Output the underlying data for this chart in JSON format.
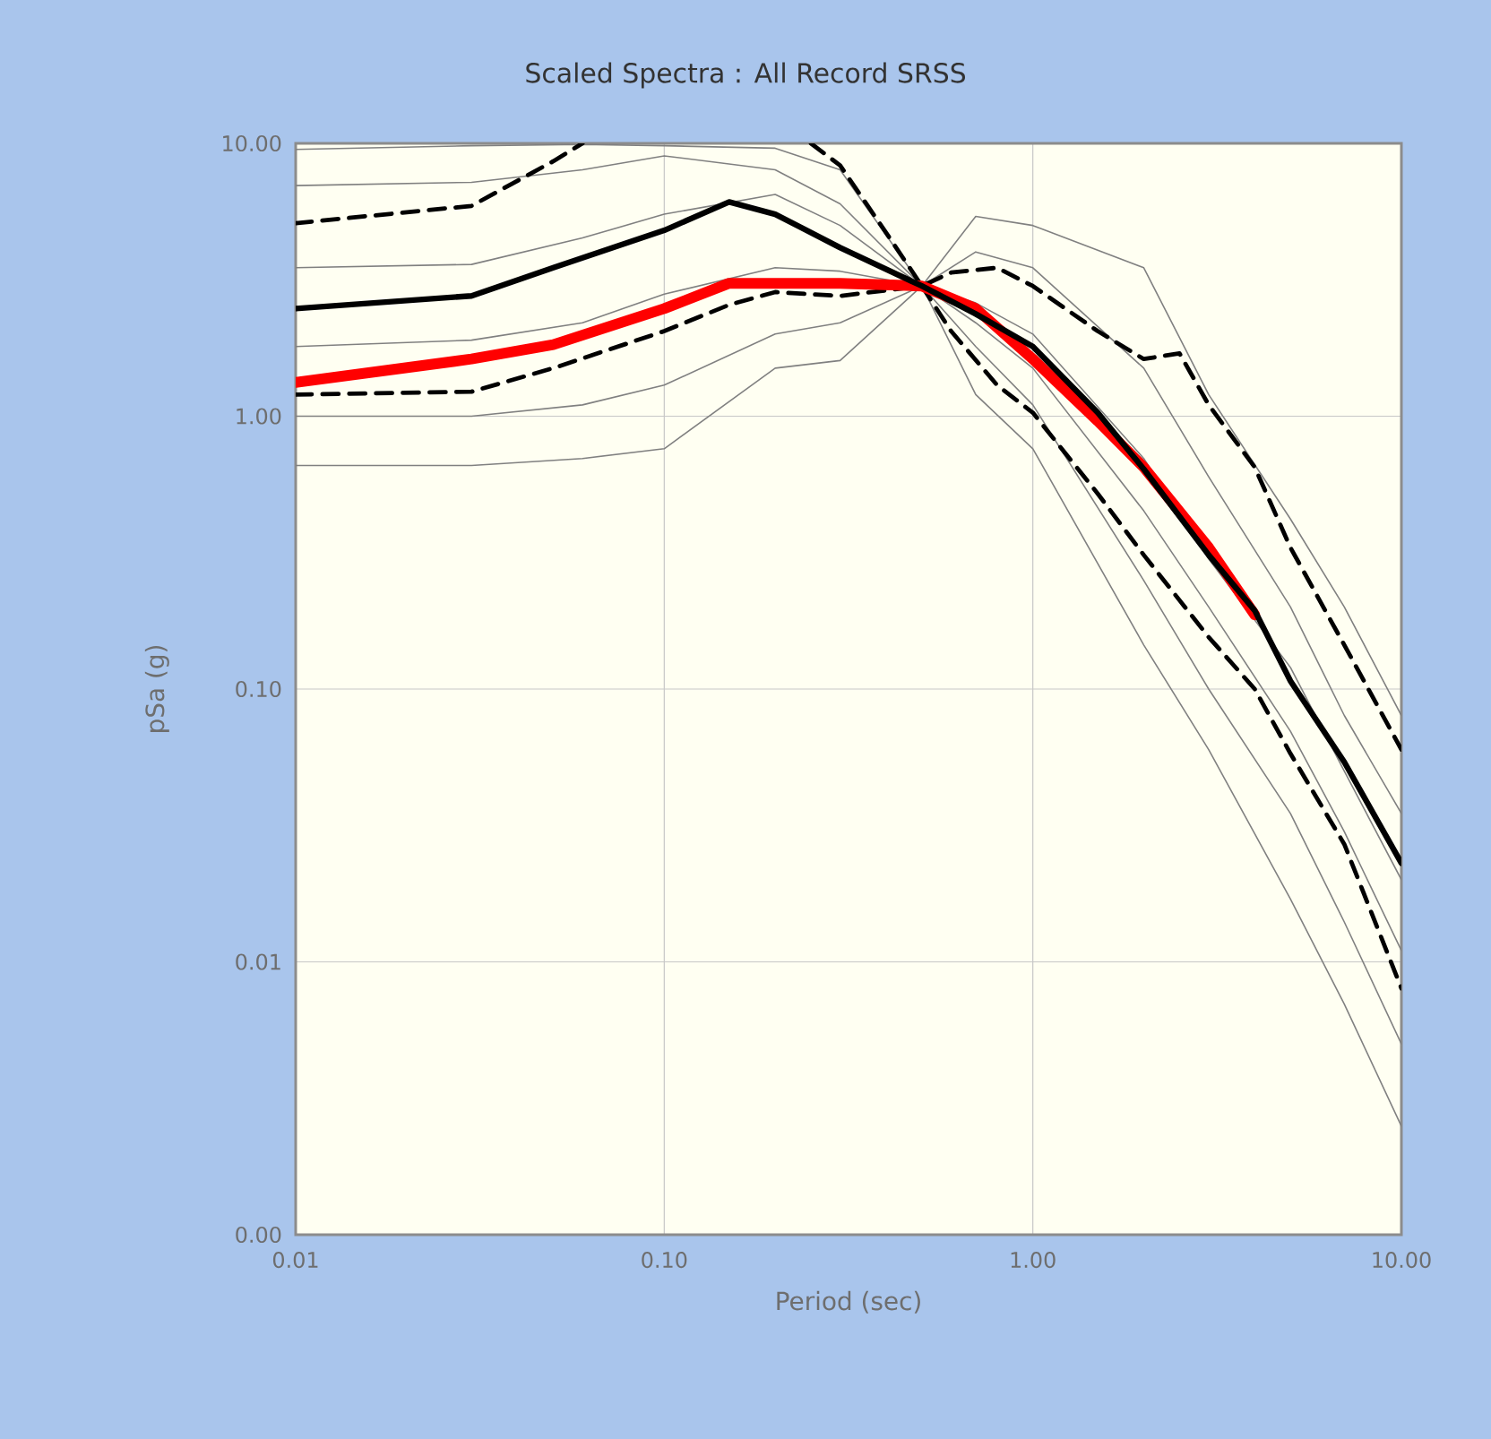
{
  "chart_data": {
    "type": "line",
    "title": "Scaled Spectra : All Record SRSS",
    "xlabel": "Period (sec)",
    "ylabel": "pSa (g)",
    "log": "xy",
    "grid": true,
    "marker": "none",
    "xlim": [
      0.01,
      10
    ],
    "ylim": [
      0.001,
      10
    ],
    "xticks": [
      {
        "value": 0.01,
        "label": "0.01"
      },
      {
        "value": 0.1,
        "label": "0.10"
      },
      {
        "value": 1,
        "label": "1.00"
      },
      {
        "value": 10,
        "label": "10.00"
      }
    ],
    "yticks": [
      {
        "value": 0.001,
        "label": "0.00"
      },
      {
        "value": 0.01,
        "label": "0.01"
      },
      {
        "value": 0.1,
        "label": "0.10"
      },
      {
        "value": 1,
        "label": "1.00"
      },
      {
        "value": 10,
        "label": "10.00"
      }
    ],
    "series": [
      {
        "color": "#808080",
        "line_style": "solid",
        "x": [
          0.01,
          0.03,
          0.06,
          0.1,
          0.2,
          0.3,
          0.5,
          0.7,
          1,
          2,
          3,
          5,
          7,
          10
        ],
        "values": [
          9.5,
          9.8,
          9.9,
          9.8,
          9.6,
          8,
          3.0,
          5.4,
          5.0,
          3.5,
          1.2,
          0.42,
          0.2,
          0.08
        ]
      },
      {
        "color": "#808080",
        "line_style": "solid",
        "x": [
          0.01,
          0.03,
          0.06,
          0.1,
          0.2,
          0.3,
          0.5,
          0.7,
          1,
          2,
          3,
          5,
          7,
          10
        ],
        "values": [
          0.66,
          0.66,
          0.7,
          0.76,
          1.5,
          1.6,
          3.0,
          1.2,
          0.76,
          0.145,
          0.06,
          0.017,
          0.007,
          0.0025
        ]
      },
      {
        "color": "#808080",
        "line_style": "solid",
        "x": [
          0.01,
          0.03,
          0.06,
          0.1,
          0.2,
          0.3,
          0.5,
          0.7,
          1,
          2,
          3,
          5,
          7,
          10
        ],
        "values": [
          3.5,
          3.6,
          4.5,
          5.5,
          6.5,
          5.0,
          3.0,
          2.6,
          2.0,
          0.7,
          0.3,
          0.12,
          0.05,
          0.02
        ]
      },
      {
        "color": "#808080",
        "line_style": "solid",
        "x": [
          0.01,
          0.03,
          0.06,
          0.1,
          0.2,
          0.3,
          0.5,
          0.7,
          1,
          2,
          3,
          5,
          7,
          10
        ],
        "values": [
          1.8,
          1.9,
          2.2,
          2.8,
          3.5,
          3.4,
          3.0,
          2.2,
          1.5,
          0.45,
          0.2,
          0.07,
          0.03,
          0.011
        ]
      },
      {
        "color": "#808080",
        "line_style": "solid",
        "x": [
          0.01,
          0.03,
          0.06,
          0.1,
          0.2,
          0.3,
          0.5,
          0.7,
          1,
          2,
          3,
          5,
          7,
          10
        ],
        "values": [
          7,
          7.2,
          8,
          9,
          8,
          6,
          3.0,
          4,
          3.5,
          1.5,
          0.6,
          0.2,
          0.08,
          0.035
        ]
      },
      {
        "color": "#808080",
        "line_style": "solid",
        "x": [
          0.01,
          0.03,
          0.06,
          0.1,
          0.2,
          0.3,
          0.5,
          0.7,
          1,
          2,
          3,
          5,
          7,
          10
        ],
        "values": [
          1.0,
          1.0,
          1.1,
          1.3,
          2.0,
          2.2,
          3.0,
          1.8,
          1.1,
          0.25,
          0.1,
          0.035,
          0.014,
          0.005
        ]
      },
      {
        "color": "#000000",
        "line_style": "dashed",
        "x": [
          0.01,
          0.03,
          0.05,
          0.06,
          0.1,
          0.15,
          0.2,
          0.25,
          0.3,
          0.4,
          0.5,
          0.6,
          0.8,
          1,
          1.5,
          2,
          2.5,
          3,
          4,
          5,
          7,
          10
        ],
        "values": [
          5.1,
          5.9,
          8.6,
          10,
          null,
          null,
          null,
          10,
          8.3,
          4.7,
          3.0,
          3.36,
          3.5,
          3.0,
          2.05,
          1.62,
          1.7,
          1.1,
          0.65,
          0.33,
          0.145,
          0.06
        ]
      },
      {
        "color": "#000000",
        "line_style": "dashed",
        "x": [
          0.01,
          0.03,
          0.05,
          0.1,
          0.15,
          0.2,
          0.3,
          0.5,
          0.6,
          0.8,
          1,
          1.5,
          2,
          3,
          4,
          5,
          7,
          10
        ],
        "values": [
          1.2,
          1.23,
          1.5,
          2.05,
          2.56,
          2.85,
          2.76,
          3.0,
          2.05,
          1.3,
          1.03,
          0.52,
          0.31,
          0.155,
          0.1,
          0.058,
          0.027,
          0.008
        ]
      },
      {
        "color": "#ff0000",
        "line_style": "solid",
        "x": [
          0.01,
          0.03,
          0.05,
          0.1,
          0.15,
          0.3,
          0.5,
          0.7,
          1,
          1.5,
          2,
          3,
          4
        ],
        "values": [
          1.33,
          1.62,
          1.83,
          2.48,
          3.07,
          3.07,
          3.0,
          2.48,
          1.62,
          0.96,
          0.65,
          0.33,
          0.187
        ]
      },
      {
        "color": "#000000",
        "line_style": "solid",
        "x": [
          0.01,
          0.03,
          0.05,
          0.1,
          0.15,
          0.2,
          0.3,
          0.5,
          0.7,
          1,
          1.5,
          2,
          3,
          4,
          5,
          7,
          10
        ],
        "values": [
          2.48,
          2.76,
          3.5,
          4.8,
          6.1,
          5.5,
          4.15,
          3.0,
          2.37,
          1.8,
          1.03,
          0.64,
          0.31,
          0.194,
          0.107,
          0.054,
          0.023
        ]
      }
    ]
  }
}
